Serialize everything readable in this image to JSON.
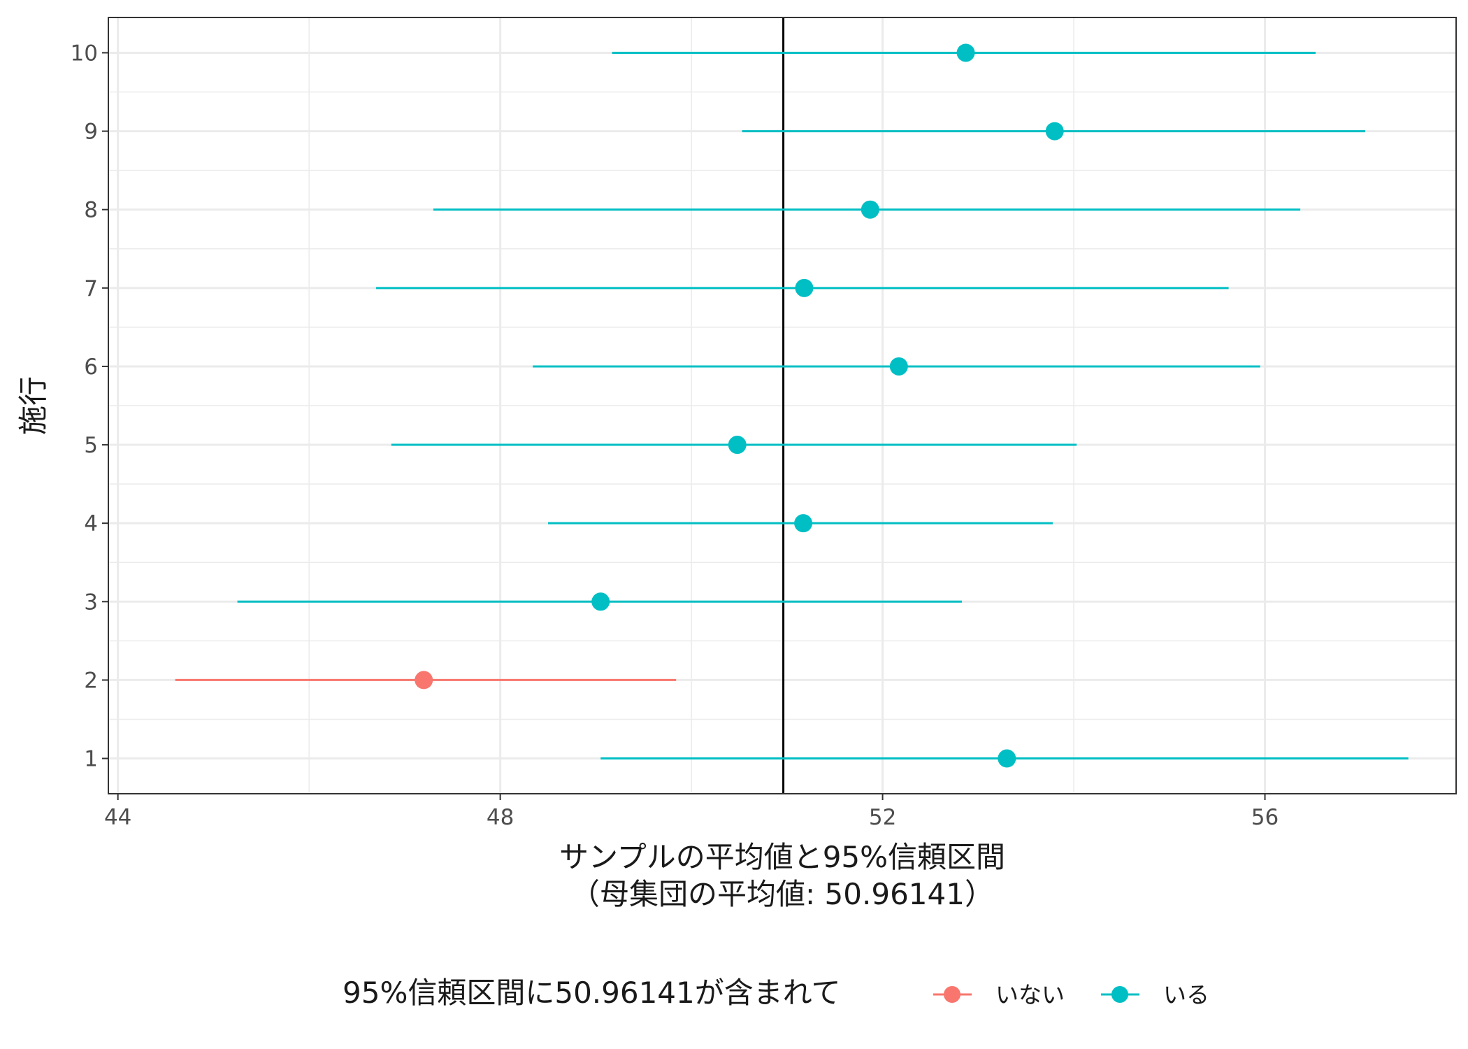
{
  "chart_data": {
    "type": "scatter",
    "subtype": "forest-plot",
    "xlabel_line1": "サンプルの平均値と95%信頼区間",
    "xlabel_line2": "（母集団の平均値: 50.96141）",
    "ylabel": "施行",
    "xlim": [
      43.9,
      58.0
    ],
    "xticks": [
      44,
      48,
      52,
      56
    ],
    "xtick_labels": [
      "44",
      "48",
      "52",
      "56"
    ],
    "ylim": [
      0.55,
      10.45
    ],
    "yticks": [
      1,
      2,
      3,
      4,
      5,
      6,
      7,
      8,
      9,
      10
    ],
    "ytick_labels": [
      "1",
      "2",
      "3",
      "4",
      "5",
      "6",
      "7",
      "8",
      "9",
      "10"
    ],
    "reference_line": 50.96141,
    "grid": true,
    "legend_position": "bottom",
    "legend": {
      "title": "95%信頼区間に50.96141が含まれて",
      "items": [
        {
          "label": "いない",
          "color": "#F8766D"
        },
        {
          "label": "いる",
          "color": "#00BFC4"
        }
      ]
    },
    "series": [
      {
        "name": "いない",
        "color": "#F8766D",
        "points": [
          {
            "trial": 2,
            "mean": 47.2,
            "lower": 44.6,
            "upper": 49.84
          }
        ]
      },
      {
        "name": "いる",
        "color": "#00BFC4",
        "points": [
          {
            "trial": 1,
            "mean": 53.3,
            "lower": 49.05,
            "upper": 57.5
          },
          {
            "trial": 3,
            "mean": 49.05,
            "lower": 45.25,
            "upper": 52.83
          },
          {
            "trial": 4,
            "mean": 51.17,
            "lower": 48.5,
            "upper": 53.78
          },
          {
            "trial": 5,
            "mean": 50.48,
            "lower": 46.86,
            "upper": 54.03
          },
          {
            "trial": 6,
            "mean": 52.17,
            "lower": 48.34,
            "upper": 55.95
          },
          {
            "trial": 7,
            "mean": 51.18,
            "lower": 46.7,
            "upper": 55.62
          },
          {
            "trial": 8,
            "mean": 51.87,
            "lower": 47.3,
            "upper": 56.37
          },
          {
            "trial": 9,
            "mean": 53.8,
            "lower": 50.53,
            "upper": 57.05
          },
          {
            "trial": 10,
            "mean": 52.87,
            "lower": 49.17,
            "upper": 56.53
          }
        ]
      }
    ]
  }
}
